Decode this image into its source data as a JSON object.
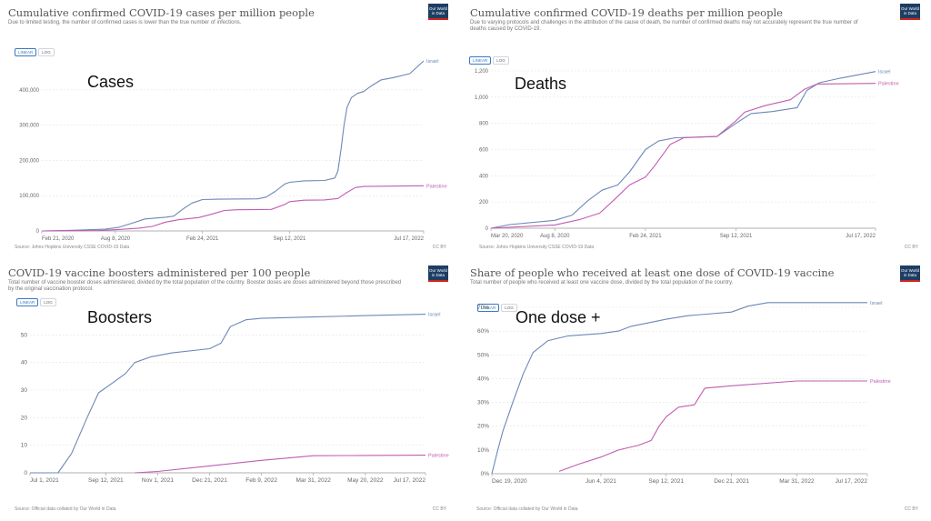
{
  "panels": [
    {
      "title": "Cumulative confirmed COVID-19 cases per million people",
      "subtitle": "Due to limited testing, the number of confirmed cases is lower than the true number of infections.",
      "logo": "Our World in Data",
      "toggles": [
        "LINEAR",
        "LOG"
      ],
      "source": "Source: Johns Hopkins University CSSE COVID-19 Data",
      "license": "CC BY",
      "annotation": "Cases"
    },
    {
      "title": "Cumulative confirmed COVID-19 deaths per million people",
      "subtitle": "Due to varying protocols and challenges in the attribution of the cause of death, the number of confirmed deaths may not accurately represent the true number of deaths caused by COVID-19.",
      "logo": "Our World in Data",
      "toggles": [
        "LINEAR",
        "LOG"
      ],
      "source": "Source: Johns Hopkins University CSSE COVID-19 Data",
      "license": "CC BY",
      "annotation": "Deaths"
    },
    {
      "title": "COVID-19 vaccine boosters administered per 100 people",
      "subtitle": "Total number of vaccine booster doses administered, divided by the total population of the country. Booster doses are doses administered beyond those prescribed by the original vaccination protocol.",
      "logo": "Our World in Data",
      "toggles": [
        "LINEAR",
        "LOG"
      ],
      "source": "Source: Official data collated by Our World in Data",
      "license": "CC BY",
      "annotation": "Boosters"
    },
    {
      "title": "Share of people who received at least one dose of COVID-19 vaccine",
      "subtitle": "Total number of people who received at least one vaccine dose, divided by the total population of the country.",
      "logo": "Our World in Data",
      "toggles": [
        "LINEAR",
        "LOG"
      ],
      "source": "Source: Official data collated by Our World in Data",
      "license": "CC BY",
      "annotation": "One dose +"
    }
  ],
  "colors": {
    "israel": "#6d87b8",
    "palestine": "#c15cb1",
    "grid": "#e3e3e3",
    "axis": "#999999"
  },
  "chart_data": [
    {
      "type": "line",
      "title": "Cumulative confirmed COVID-19 cases per million people",
      "x_type": "date",
      "xlim": [
        "2020-02-21",
        "2022-07-17"
      ],
      "ylim": [
        0,
        500000
      ],
      "yticks": [
        0,
        100000,
        200000,
        300000,
        400000
      ],
      "ytick_labels": [
        "0",
        "100,000",
        "200,000",
        "300,000",
        "400,000"
      ],
      "xticks": [
        "2020-02-21",
        "2020-08-08",
        "2021-02-24",
        "2021-09-12",
        "2022-07-17"
      ],
      "xtick_labels": [
        "Feb 21, 2020",
        "Aug 8, 2020",
        "Feb 24, 2021",
        "Sep 12, 2021",
        "Jul 17, 2022"
      ],
      "series": [
        {
          "name": "Israel",
          "color": "#6d87b8",
          "points": [
            [
              "2020-02-21",
              0
            ],
            [
              "2020-05-01",
              1800
            ],
            [
              "2020-07-15",
              5000
            ],
            [
              "2020-08-15",
              10000
            ],
            [
              "2020-09-15",
              22000
            ],
            [
              "2020-10-15",
              34000
            ],
            [
              "2020-12-01",
              39000
            ],
            [
              "2020-12-20",
              42000
            ],
            [
              "2021-01-10",
              62000
            ],
            [
              "2021-01-31",
              79000
            ],
            [
              "2021-02-24",
              89000
            ],
            [
              "2021-04-01",
              90000
            ],
            [
              "2021-07-01",
              91000
            ],
            [
              "2021-07-20",
              96000
            ],
            [
              "2021-08-10",
              112000
            ],
            [
              "2021-09-01",
              133000
            ],
            [
              "2021-09-12",
              138000
            ],
            [
              "2021-10-15",
              142000
            ],
            [
              "2021-12-01",
              143000
            ],
            [
              "2021-12-25",
              150000
            ],
            [
              "2022-01-01",
              170000
            ],
            [
              "2022-01-08",
              230000
            ],
            [
              "2022-01-15",
              300000
            ],
            [
              "2022-01-22",
              350000
            ],
            [
              "2022-02-01",
              378000
            ],
            [
              "2022-02-15",
              390000
            ],
            [
              "2022-03-01",
              395000
            ],
            [
              "2022-03-20",
              412000
            ],
            [
              "2022-04-10",
              428000
            ],
            [
              "2022-05-10",
              435000
            ],
            [
              "2022-06-15",
              446000
            ],
            [
              "2022-07-17",
              482000
            ]
          ]
        },
        {
          "name": "Palestine",
          "color": "#c15cb1",
          "points": [
            [
              "2020-02-21",
              0
            ],
            [
              "2020-07-01",
              1000
            ],
            [
              "2020-08-15",
              4000
            ],
            [
              "2020-10-01",
              8000
            ],
            [
              "2020-11-01",
              13000
            ],
            [
              "2020-12-01",
              25000
            ],
            [
              "2021-01-01",
              32000
            ],
            [
              "2021-02-15",
              38000
            ],
            [
              "2021-03-15",
              47000
            ],
            [
              "2021-04-15",
              58000
            ],
            [
              "2021-05-15",
              60000
            ],
            [
              "2021-08-01",
              61000
            ],
            [
              "2021-09-01",
              75000
            ],
            [
              "2021-09-12",
              83000
            ],
            [
              "2021-10-15",
              87000
            ],
            [
              "2021-12-01",
              88000
            ],
            [
              "2022-01-01",
              92000
            ],
            [
              "2022-01-20",
              108000
            ],
            [
              "2022-02-10",
              123000
            ],
            [
              "2022-03-01",
              126000
            ],
            [
              "2022-07-17",
              128000
            ]
          ]
        }
      ]
    },
    {
      "type": "line",
      "title": "Cumulative confirmed COVID-19 deaths per million people",
      "x_type": "date",
      "xlim": [
        "2020-03-20",
        "2022-07-17"
      ],
      "ylim": [
        0,
        1200
      ],
      "yticks": [
        0,
        200,
        400,
        600,
        800,
        1000,
        1200
      ],
      "ytick_labels": [
        "0",
        "200",
        "400",
        "600",
        "800",
        "1,000",
        "1,200"
      ],
      "xticks": [
        "2020-03-20",
        "2020-08-08",
        "2021-02-24",
        "2021-09-12",
        "2022-07-17"
      ],
      "xtick_labels": [
        "Mar 20, 2020",
        "Aug 8, 2020",
        "Feb 24, 2021",
        "Sep 12, 2021",
        "Jul 17, 2022"
      ],
      "series": [
        {
          "name": "Israel",
          "color": "#6d87b8",
          "points": [
            [
              "2020-03-20",
              0
            ],
            [
              "2020-05-01",
              28
            ],
            [
              "2020-08-08",
              60
            ],
            [
              "2020-09-15",
              100
            ],
            [
              "2020-10-20",
              210
            ],
            [
              "2020-11-20",
              290
            ],
            [
              "2020-12-25",
              330
            ],
            [
              "2021-01-20",
              430
            ],
            [
              "2021-02-24",
              600
            ],
            [
              "2021-03-25",
              665
            ],
            [
              "2021-05-01",
              690
            ],
            [
              "2021-08-01",
              700
            ],
            [
              "2021-09-12",
              800
            ],
            [
              "2021-10-15",
              875
            ],
            [
              "2021-12-01",
              890
            ],
            [
              "2022-01-25",
              920
            ],
            [
              "2022-02-15",
              1050
            ],
            [
              "2022-03-15",
              1110
            ],
            [
              "2022-05-01",
              1145
            ],
            [
              "2022-07-17",
              1195
            ]
          ]
        },
        {
          "name": "Palestine",
          "color": "#c15cb1",
          "points": [
            [
              "2020-03-20",
              0
            ],
            [
              "2020-08-08",
              25
            ],
            [
              "2020-10-01",
              65
            ],
            [
              "2020-11-15",
              115
            ],
            [
              "2020-12-15",
              210
            ],
            [
              "2021-01-20",
              330
            ],
            [
              "2021-02-24",
              390
            ],
            [
              "2021-03-15",
              470
            ],
            [
              "2021-04-20",
              640
            ],
            [
              "2021-05-20",
              690
            ],
            [
              "2021-08-01",
              700
            ],
            [
              "2021-09-12",
              820
            ],
            [
              "2021-10-01",
              885
            ],
            [
              "2021-11-15",
              935
            ],
            [
              "2022-01-10",
              980
            ],
            [
              "2022-02-10",
              1060
            ],
            [
              "2022-03-10",
              1100
            ],
            [
              "2022-07-17",
              1105
            ]
          ]
        }
      ]
    },
    {
      "type": "line",
      "title": "COVID-19 vaccine boosters administered per 100 people",
      "x_type": "date",
      "xlim": [
        "2021-07-01",
        "2022-07-17"
      ],
      "ylim": [
        0,
        60
      ],
      "yticks": [
        0,
        10,
        20,
        30,
        40,
        50
      ],
      "ytick_labels": [
        "0",
        "10",
        "20",
        "30",
        "40",
        "50"
      ],
      "xticks": [
        "2021-07-01",
        "2021-09-12",
        "2021-11-01",
        "2021-12-21",
        "2022-02-09",
        "2022-03-31",
        "2022-05-20",
        "2022-07-17"
      ],
      "xtick_labels": [
        "Jul 1, 2021",
        "Sep 12, 2021",
        "Nov 1, 2021",
        "Dec 21, 2021",
        "Feb 9, 2022",
        "Mar 31, 2022",
        "May 20, 2022",
        "Jul 17, 2022"
      ],
      "series": [
        {
          "name": "Israel",
          "color": "#6d87b8",
          "points": [
            [
              "2021-07-01",
              0
            ],
            [
              "2021-07-28",
              0
            ],
            [
              "2021-08-10",
              7
            ],
            [
              "2021-08-25",
              20
            ],
            [
              "2021-09-05",
              29
            ],
            [
              "2021-09-20",
              33
            ],
            [
              "2021-10-01",
              36
            ],
            [
              "2021-10-10",
              40
            ],
            [
              "2021-10-25",
              42
            ],
            [
              "2021-11-15",
              43.5
            ],
            [
              "2021-12-21",
              45
            ],
            [
              "2022-01-01",
              47
            ],
            [
              "2022-01-10",
              53
            ],
            [
              "2022-01-25",
              55.5
            ],
            [
              "2022-02-09",
              56
            ],
            [
              "2022-03-31",
              56.5
            ],
            [
              "2022-05-20",
              57
            ],
            [
              "2022-07-17",
              57.5
            ]
          ]
        },
        {
          "name": "Palestine",
          "color": "#c15cb1",
          "points": [
            [
              "2021-10-10",
              0
            ],
            [
              "2021-11-01",
              0.5
            ],
            [
              "2021-12-21",
              2.5
            ],
            [
              "2022-02-09",
              4.5
            ],
            [
              "2022-03-31",
              6.2
            ],
            [
              "2022-05-20",
              6.3
            ],
            [
              "2022-07-17",
              6.4
            ]
          ]
        }
      ]
    },
    {
      "type": "line",
      "title": "Share of people who received at least one dose of COVID-19 vaccine",
      "x_type": "date",
      "xlim": [
        "2020-12-19",
        "2022-07-17"
      ],
      "ylim": [
        0,
        70
      ],
      "yticks": [
        0,
        10,
        20,
        30,
        40,
        50,
        60,
        70
      ],
      "ytick_labels": [
        "0%",
        "10%",
        "20%",
        "30%",
        "40%",
        "50%",
        "60%",
        "70%"
      ],
      "xticks": [
        "2020-12-19",
        "2021-06-04",
        "2021-09-12",
        "2021-12-21",
        "2022-03-31",
        "2022-07-17"
      ],
      "xtick_labels": [
        "Dec 19, 2020",
        "Jun 4, 2021",
        "Sep 12, 2021",
        "Dec 21, 2021",
        "Mar 31, 2022",
        "Jul 17, 2022"
      ],
      "series": [
        {
          "name": "Israel",
          "color": "#6d87b8",
          "points": [
            [
              "2020-12-19",
              0
            ],
            [
              "2020-12-28",
              10
            ],
            [
              "2021-01-05",
              18
            ],
            [
              "2021-01-20",
              30
            ],
            [
              "2021-02-05",
              42
            ],
            [
              "2021-02-20",
              51
            ],
            [
              "2021-03-15",
              56
            ],
            [
              "2021-04-15",
              58
            ],
            [
              "2021-06-04",
              59
            ],
            [
              "2021-07-01",
              60
            ],
            [
              "2021-07-20",
              62
            ],
            [
              "2021-09-12",
              65
            ],
            [
              "2021-10-15",
              66.5
            ],
            [
              "2021-12-21",
              68
            ],
            [
              "2022-01-15",
              70.5
            ],
            [
              "2022-02-15",
              72
            ],
            [
              "2022-03-31",
              72
            ],
            [
              "2022-07-17",
              72
            ]
          ]
        },
        {
          "name": "Palestine",
          "color": "#c15cb1",
          "points": [
            [
              "2021-04-01",
              1
            ],
            [
              "2021-05-01",
              4
            ],
            [
              "2021-06-04",
              7
            ],
            [
              "2021-07-01",
              10
            ],
            [
              "2021-08-01",
              12
            ],
            [
              "2021-08-20",
              14
            ],
            [
              "2021-09-01",
              20
            ],
            [
              "2021-09-12",
              24
            ],
            [
              "2021-10-01",
              28
            ],
            [
              "2021-10-25",
              29
            ],
            [
              "2021-11-10",
              36
            ],
            [
              "2021-12-21",
              37
            ],
            [
              "2022-03-31",
              39
            ],
            [
              "2022-07-17",
              39
            ]
          ]
        }
      ]
    }
  ]
}
